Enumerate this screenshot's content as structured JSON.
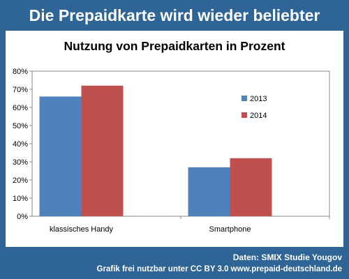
{
  "banner": {
    "title": "Die Prepaidkarte wird wieder beliebter"
  },
  "chart_data": {
    "type": "bar",
    "title": "Nutzung von Prepaidkarten in Prozent",
    "categories": [
      "klassisches Handy",
      "Smartphone"
    ],
    "series": [
      {
        "name": "2013",
        "values": [
          66,
          27
        ],
        "color": "#4f81bd"
      },
      {
        "name": "2014",
        "values": [
          72,
          32
        ],
        "color": "#c0504d"
      }
    ],
    "ylim": [
      0,
      80
    ],
    "yticks": [
      "0%",
      "10%",
      "20%",
      "30%",
      "40%",
      "50%",
      "60%",
      "70%",
      "80%"
    ],
    "grid": false,
    "legend_position": "right"
  },
  "footer": {
    "source": "Daten: SMIX Studie Yougov",
    "license": "Grafik frei nutzbar unter CC BY 3.0 www.prepaid-deutschland.de"
  }
}
